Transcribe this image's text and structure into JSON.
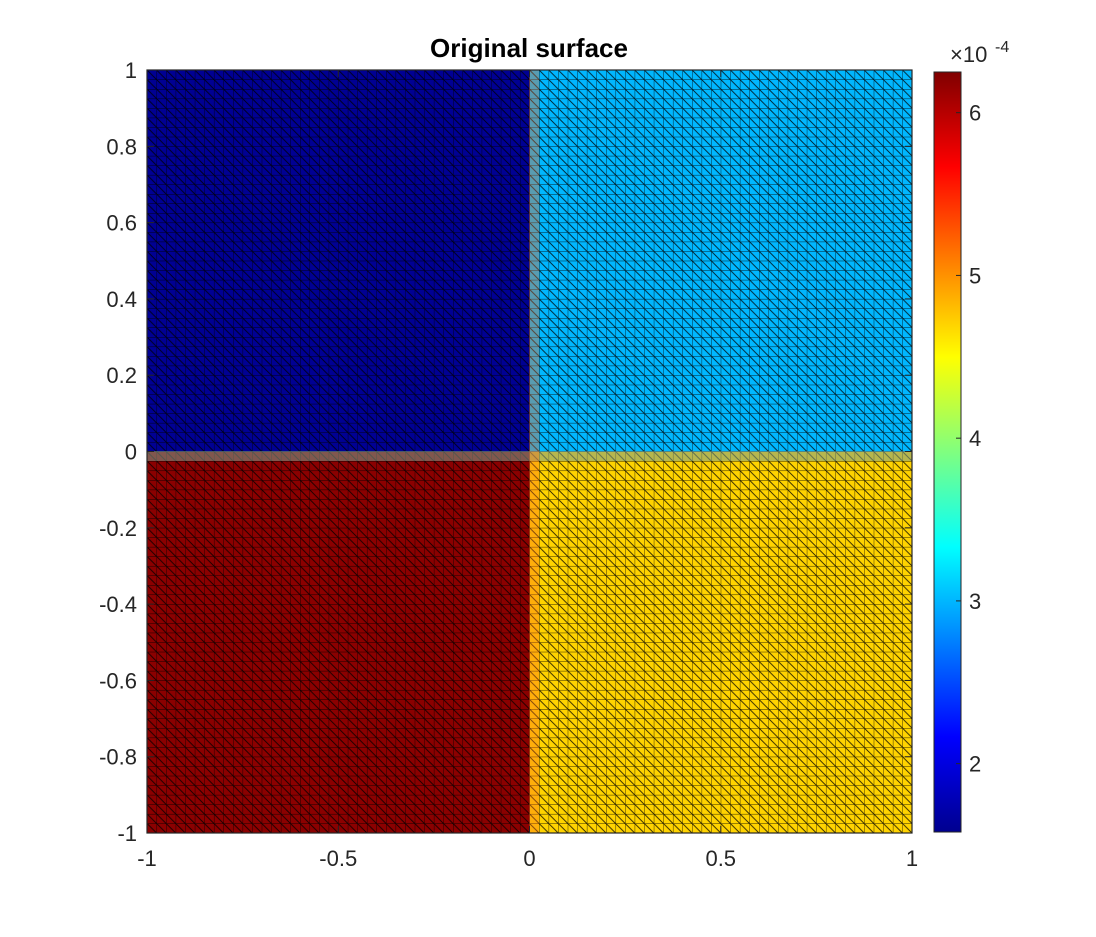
{
  "chart_data": {
    "type": "heatmap",
    "title": "Original surface",
    "xlabel": "",
    "ylabel": "",
    "xlim": [
      -1,
      1
    ],
    "ylim": [
      -1,
      1
    ],
    "x_ticks": [
      "-1",
      "-0.5",
      "0",
      "0.5",
      "1"
    ],
    "y_ticks": [
      "1",
      "0.8",
      "0.6",
      "0.4",
      "0.2",
      "0",
      "-0.2",
      "-0.4",
      "-0.6",
      "-0.8",
      "-1"
    ],
    "mesh": "triangulated grid with black edges",
    "regions": [
      {
        "x": [
          -1,
          0
        ],
        "y": [
          0,
          1
        ],
        "value": 0.00016
      },
      {
        "x": [
          0,
          1
        ],
        "y": [
          0,
          1
        ],
        "value": 0.0003
      },
      {
        "x": [
          -1,
          0
        ],
        "y": [
          -1,
          0
        ],
        "value": 0.00062
      },
      {
        "x": [
          0,
          1
        ],
        "y": [
          -1,
          0
        ],
        "value": 0.00047
      }
    ],
    "colorbar": {
      "colormap": "jet",
      "range": [
        0.000158,
        0.000625
      ],
      "ticks": [
        "2",
        "3",
        "4",
        "5",
        "6"
      ],
      "tick_values": [
        2,
        3,
        4,
        5,
        6
      ],
      "exponent_base": "×10",
      "exponent": "-4"
    }
  }
}
